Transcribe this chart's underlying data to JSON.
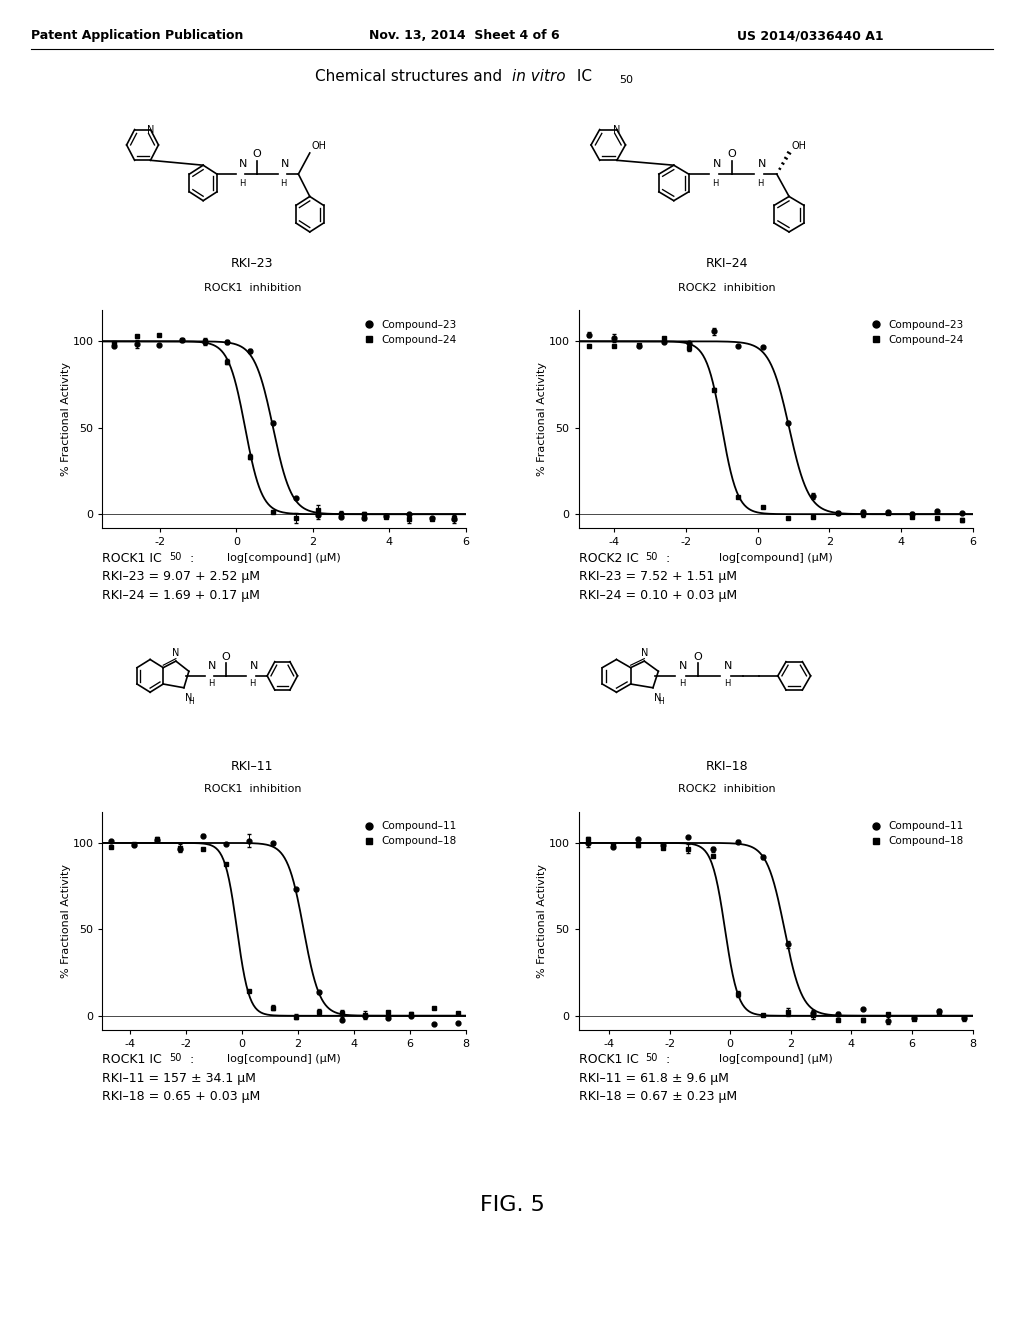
{
  "header_left": "Patent Application Publication",
  "header_mid": "Nov. 13, 2014  Sheet 4 of 6",
  "header_right": "US 2014/0336440 A1",
  "fig_label": "FIG. 5",
  "panel_top_left": {
    "legend1": "Compound–23",
    "legend2": "Compound–24",
    "xlabel": "log[compound] (μM)",
    "ylabel": "% Fractional Activity",
    "xmin": -3.5,
    "xmax": 6,
    "xticks": [
      -2,
      0,
      2,
      4,
      6
    ],
    "ic50_title": "ROCK1 IC",
    "ic50_sub": "50",
    "ic50_colon": ":",
    "ic50_line1": "RKI–23 = 9.07 + 2.52 μM",
    "ic50_line2": "RKI–24 = 1.69 + 0.17 μM",
    "curve1_ic50": 0.96,
    "curve2_ic50": 0.23,
    "curve1_hill": 1.8,
    "curve2_hill": 2.0
  },
  "panel_top_right": {
    "legend1": "Compound–23",
    "legend2": "Compound–24",
    "xlabel": "log[compound] (μM)",
    "ylabel": "% Fractional Activity",
    "xmin": -5,
    "xmax": 6,
    "xticks": [
      -4,
      -2,
      0,
      2,
      4,
      6
    ],
    "ic50_title": "ROCK2 IC",
    "ic50_sub": "50",
    "ic50_colon": ":",
    "ic50_line1": "RKI–23 = 7.52 + 1.51 μM",
    "ic50_line2": "RKI–24 = 0.10 + 0.03 μM",
    "curve1_ic50": 0.876,
    "curve2_ic50": -1.0,
    "curve1_hill": 1.6,
    "curve2_hill": 2.0
  },
  "panel_bot_left": {
    "legend1": "Compound–11",
    "legend2": "Compound–18",
    "xlabel": "log[compound] (μM)",
    "ylabel": "% Fractional Activity",
    "xmin": -5,
    "xmax": 8,
    "xticks": [
      -4,
      -2,
      0,
      2,
      4,
      6,
      8
    ],
    "ic50_title": "ROCK1 IC",
    "ic50_sub": "50",
    "ic50_colon": ":",
    "ic50_line1": "RKI–11 = 157 ± 34.1 μM",
    "ic50_line2": "RKI–18 = 0.65 + 0.03 μM",
    "curve1_ic50": 2.196,
    "curve2_ic50": -0.187,
    "curve1_hill": 1.5,
    "curve2_hill": 2.0
  },
  "panel_bot_right": {
    "legend1": "Compound–11",
    "legend2": "Compound–18",
    "xlabel": "log[compound] (μM)",
    "ylabel": "% Fractional Activity",
    "xmin": -5,
    "xmax": 8,
    "xticks": [
      -4,
      -2,
      0,
      2,
      4,
      6,
      8
    ],
    "ic50_title": "ROCK1 IC",
    "ic50_sub": "50",
    "ic50_colon": ":",
    "ic50_line1": "RKI–11 = 61.8 ± 9.6 μM",
    "ic50_line2": "RKI–18 = 0.67 ± 0.23 μM",
    "curve1_ic50": 1.79,
    "curve2_ic50": -0.17,
    "curve1_hill": 1.5,
    "curve2_hill": 2.0
  }
}
